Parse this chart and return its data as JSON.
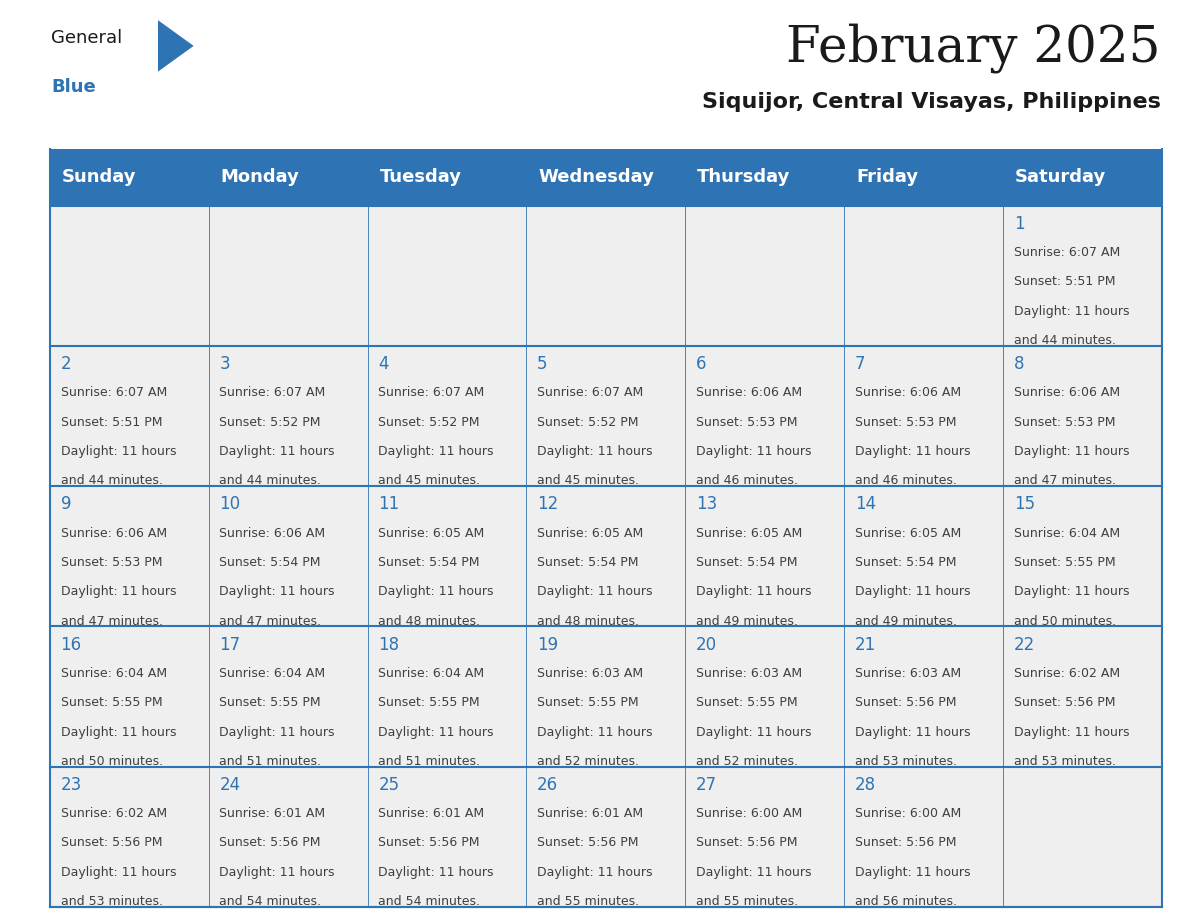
{
  "title": "February 2025",
  "subtitle": "Siquijor, Central Visayas, Philippines",
  "header_color": "#2E74B5",
  "header_text_color": "#FFFFFF",
  "cell_bg_color": "#EFEFEF",
  "border_color": "#2E74B5",
  "day_number_color": "#2E74B5",
  "text_color": "#404040",
  "days_of_week": [
    "Sunday",
    "Monday",
    "Tuesday",
    "Wednesday",
    "Thursday",
    "Friday",
    "Saturday"
  ],
  "weeks": [
    [
      {
        "day": "",
        "info": ""
      },
      {
        "day": "",
        "info": ""
      },
      {
        "day": "",
        "info": ""
      },
      {
        "day": "",
        "info": ""
      },
      {
        "day": "",
        "info": ""
      },
      {
        "day": "",
        "info": ""
      },
      {
        "day": "1",
        "info": "Sunrise: 6:07 AM\nSunset: 5:51 PM\nDaylight: 11 hours\nand 44 minutes."
      }
    ],
    [
      {
        "day": "2",
        "info": "Sunrise: 6:07 AM\nSunset: 5:51 PM\nDaylight: 11 hours\nand 44 minutes."
      },
      {
        "day": "3",
        "info": "Sunrise: 6:07 AM\nSunset: 5:52 PM\nDaylight: 11 hours\nand 44 minutes."
      },
      {
        "day": "4",
        "info": "Sunrise: 6:07 AM\nSunset: 5:52 PM\nDaylight: 11 hours\nand 45 minutes."
      },
      {
        "day": "5",
        "info": "Sunrise: 6:07 AM\nSunset: 5:52 PM\nDaylight: 11 hours\nand 45 minutes."
      },
      {
        "day": "6",
        "info": "Sunrise: 6:06 AM\nSunset: 5:53 PM\nDaylight: 11 hours\nand 46 minutes."
      },
      {
        "day": "7",
        "info": "Sunrise: 6:06 AM\nSunset: 5:53 PM\nDaylight: 11 hours\nand 46 minutes."
      },
      {
        "day": "8",
        "info": "Sunrise: 6:06 AM\nSunset: 5:53 PM\nDaylight: 11 hours\nand 47 minutes."
      }
    ],
    [
      {
        "day": "9",
        "info": "Sunrise: 6:06 AM\nSunset: 5:53 PM\nDaylight: 11 hours\nand 47 minutes."
      },
      {
        "day": "10",
        "info": "Sunrise: 6:06 AM\nSunset: 5:54 PM\nDaylight: 11 hours\nand 47 minutes."
      },
      {
        "day": "11",
        "info": "Sunrise: 6:05 AM\nSunset: 5:54 PM\nDaylight: 11 hours\nand 48 minutes."
      },
      {
        "day": "12",
        "info": "Sunrise: 6:05 AM\nSunset: 5:54 PM\nDaylight: 11 hours\nand 48 minutes."
      },
      {
        "day": "13",
        "info": "Sunrise: 6:05 AM\nSunset: 5:54 PM\nDaylight: 11 hours\nand 49 minutes."
      },
      {
        "day": "14",
        "info": "Sunrise: 6:05 AM\nSunset: 5:54 PM\nDaylight: 11 hours\nand 49 minutes."
      },
      {
        "day": "15",
        "info": "Sunrise: 6:04 AM\nSunset: 5:55 PM\nDaylight: 11 hours\nand 50 minutes."
      }
    ],
    [
      {
        "day": "16",
        "info": "Sunrise: 6:04 AM\nSunset: 5:55 PM\nDaylight: 11 hours\nand 50 minutes."
      },
      {
        "day": "17",
        "info": "Sunrise: 6:04 AM\nSunset: 5:55 PM\nDaylight: 11 hours\nand 51 minutes."
      },
      {
        "day": "18",
        "info": "Sunrise: 6:04 AM\nSunset: 5:55 PM\nDaylight: 11 hours\nand 51 minutes."
      },
      {
        "day": "19",
        "info": "Sunrise: 6:03 AM\nSunset: 5:55 PM\nDaylight: 11 hours\nand 52 minutes."
      },
      {
        "day": "20",
        "info": "Sunrise: 6:03 AM\nSunset: 5:55 PM\nDaylight: 11 hours\nand 52 minutes."
      },
      {
        "day": "21",
        "info": "Sunrise: 6:03 AM\nSunset: 5:56 PM\nDaylight: 11 hours\nand 53 minutes."
      },
      {
        "day": "22",
        "info": "Sunrise: 6:02 AM\nSunset: 5:56 PM\nDaylight: 11 hours\nand 53 minutes."
      }
    ],
    [
      {
        "day": "23",
        "info": "Sunrise: 6:02 AM\nSunset: 5:56 PM\nDaylight: 11 hours\nand 53 minutes."
      },
      {
        "day": "24",
        "info": "Sunrise: 6:01 AM\nSunset: 5:56 PM\nDaylight: 11 hours\nand 54 minutes."
      },
      {
        "day": "25",
        "info": "Sunrise: 6:01 AM\nSunset: 5:56 PM\nDaylight: 11 hours\nand 54 minutes."
      },
      {
        "day": "26",
        "info": "Sunrise: 6:01 AM\nSunset: 5:56 PM\nDaylight: 11 hours\nand 55 minutes."
      },
      {
        "day": "27",
        "info": "Sunrise: 6:00 AM\nSunset: 5:56 PM\nDaylight: 11 hours\nand 55 minutes."
      },
      {
        "day": "28",
        "info": "Sunrise: 6:00 AM\nSunset: 5:56 PM\nDaylight: 11 hours\nand 56 minutes."
      },
      {
        "day": "",
        "info": ""
      }
    ]
  ],
  "logo_text1": "General",
  "logo_text2": "Blue",
  "logo_color1": "#1A1A1A",
  "logo_color2": "#2E74B5",
  "logo_triangle_color": "#2E74B5",
  "title_fontsize": 36,
  "subtitle_fontsize": 16,
  "header_fontsize": 13,
  "day_num_fontsize": 12,
  "cell_text_fontsize": 9
}
